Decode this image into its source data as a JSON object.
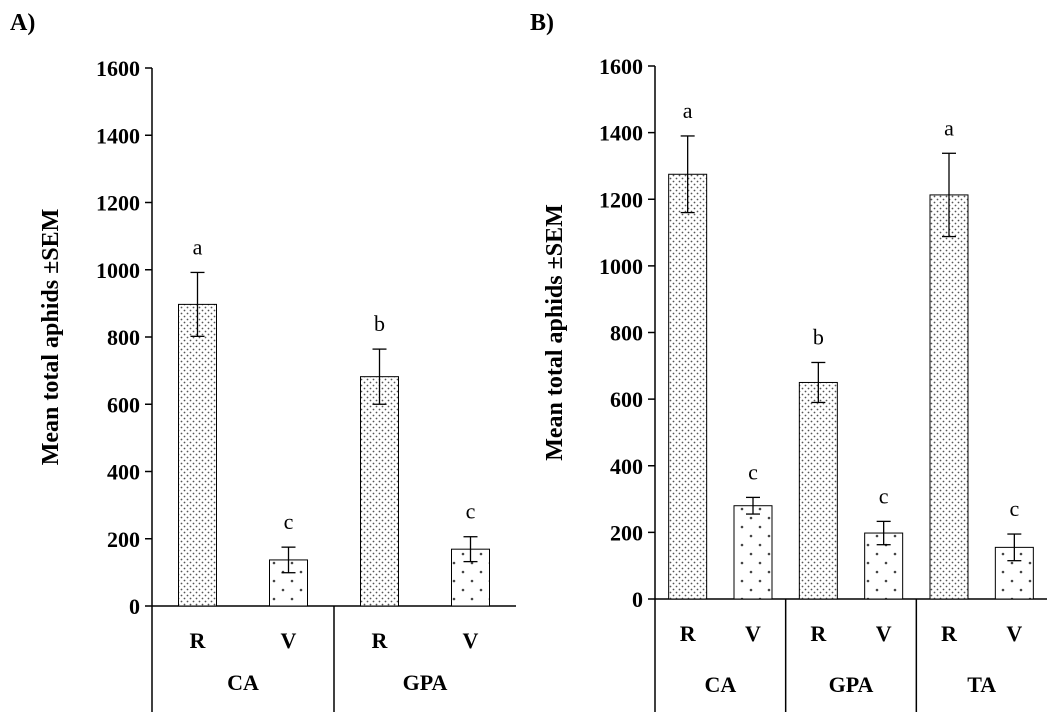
{
  "chart_data": [
    {
      "type": "bar",
      "panel_label": "A)",
      "ylabel": "Mean total aphids ±SEM",
      "ylim": [
        0,
        1600
      ],
      "yticks": [
        0,
        200,
        400,
        600,
        800,
        1000,
        1200,
        1400,
        1600
      ],
      "grid": false,
      "groups": [
        "CA",
        "GPA"
      ],
      "bars": [
        {
          "group": "CA",
          "category": "R",
          "value": 897,
          "sem": 95,
          "letter": "a"
        },
        {
          "group": "CA",
          "category": "V",
          "value": 137,
          "sem": 38,
          "letter": "c"
        },
        {
          "group": "GPA",
          "category": "R",
          "value": 682,
          "sem": 82,
          "letter": "b"
        },
        {
          "group": "GPA",
          "category": "V",
          "value": 169,
          "sem": 37,
          "letter": "c"
        }
      ]
    },
    {
      "type": "bar",
      "panel_label": "B)",
      "ylabel": "Mean total aphids ±SEM",
      "ylim": [
        0,
        1600
      ],
      "yticks": [
        0,
        200,
        400,
        600,
        800,
        1000,
        1200,
        1400,
        1600
      ],
      "grid": false,
      "groups": [
        "CA",
        "GPA",
        "TA"
      ],
      "bars": [
        {
          "group": "CA",
          "category": "R",
          "value": 1275,
          "sem": 115,
          "letter": "a"
        },
        {
          "group": "CA",
          "category": "V",
          "value": 280,
          "sem": 25,
          "letter": "c"
        },
        {
          "group": "GPA",
          "category": "R",
          "value": 650,
          "sem": 60,
          "letter": "b"
        },
        {
          "group": "GPA",
          "category": "V",
          "value": 198,
          "sem": 35,
          "letter": "c"
        },
        {
          "group": "TA",
          "category": "R",
          "value": 1213,
          "sem": 125,
          "letter": "a"
        },
        {
          "group": "TA",
          "category": "V",
          "value": 155,
          "sem": 40,
          "letter": "c"
        }
      ]
    }
  ]
}
